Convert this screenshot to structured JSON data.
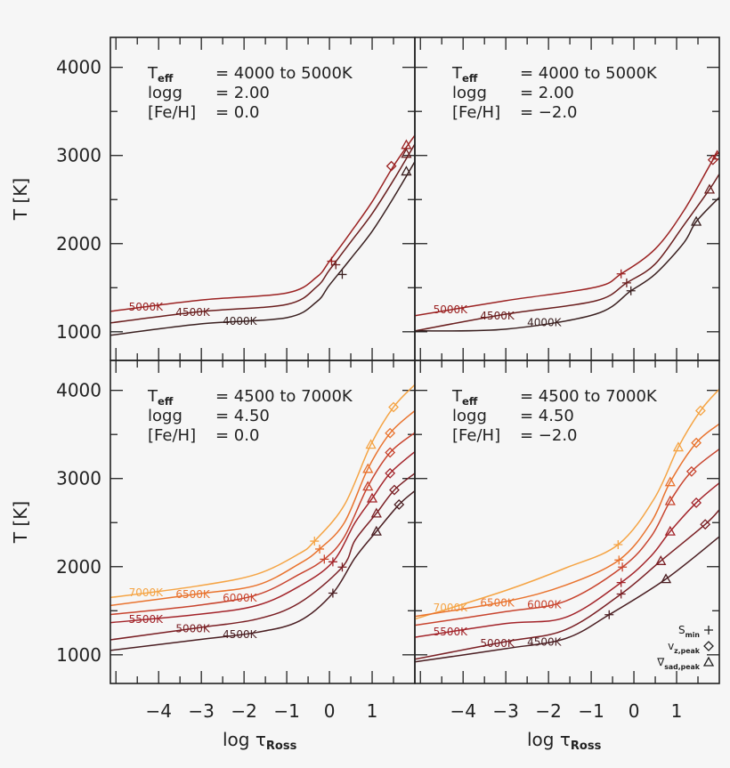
{
  "chart_data": [
    {
      "type": "line",
      "panel": "top-left",
      "annotation": [
        {
          "label": "T",
          "sub": "eff",
          "value": "=  4000 to 5000K"
        },
        {
          "label": "logg",
          "sub": "",
          "value": "=  2.00"
        },
        {
          "label": "[Fe/H]",
          "sub": "",
          "value": "=  0.0"
        }
      ],
      "ylabel": "T [K]",
      "xlabel": "",
      "show_y_ticklabels": true,
      "show_x_ticklabels": false,
      "xlim": [
        -5.13,
        2.0
      ],
      "ylim": [
        675,
        4340
      ],
      "xticks": [
        -4,
        -3,
        -2,
        -1,
        0,
        1
      ],
      "yticks": [
        1000,
        2000,
        3000,
        4000
      ],
      "ytick_labels": [
        "1000",
        "2000",
        "3000",
        "4000"
      ],
      "xtick_labels": [
        "−4",
        "−3",
        "−2",
        "−1",
        "0",
        "1"
      ],
      "series": [
        {
          "name": "5000K",
          "color": "#9b2222",
          "x": [
            -5.13,
            -3,
            -1,
            -0.3,
            0,
            0.5,
            1,
            1.5,
            2.0
          ],
          "y": [
            1232,
            1360,
            1440,
            1620,
            1800,
            2130,
            2475,
            2880,
            3230
          ],
          "s_min": [
            0.05,
            1800
          ],
          "vz_peak": [
            1.45,
            2880
          ],
          "nabla_peak": [
            1.8,
            3120
          ]
        },
        {
          "name": "4500K",
          "color": "#6a1e1e",
          "x": [
            -5.13,
            -3,
            -1,
            -0.3,
            0,
            0.5,
            1,
            1.5,
            2.0
          ],
          "y": [
            1100,
            1230,
            1310,
            1510,
            1700,
            2020,
            2340,
            2720,
            3130
          ],
          "s_min": [
            0.15,
            1760
          ],
          "vz_peak": null,
          "nabla_peak": [
            1.8,
            3020
          ]
        },
        {
          "name": "4000K",
          "color": "#3a2020",
          "x": [
            -5.13,
            -3,
            -1,
            -0.3,
            0,
            0.5,
            1,
            1.5,
            2.0
          ],
          "y": [
            960,
            1090,
            1160,
            1340,
            1530,
            1830,
            2140,
            2520,
            2930
          ],
          "s_min": [
            0.3,
            1650
          ],
          "vz_peak": null,
          "nabla_peak": [
            1.8,
            2820
          ]
        }
      ]
    },
    {
      "type": "line",
      "panel": "top-right",
      "annotation": [
        {
          "label": "T",
          "sub": "eff",
          "value": "=  4000 to 5000K"
        },
        {
          "label": "logg",
          "sub": "",
          "value": "=  2.00"
        },
        {
          "label": "[Fe/H]",
          "sub": "",
          "value": "=  −2.0"
        }
      ],
      "ylabel": "",
      "xlabel": "",
      "show_y_ticklabels": false,
      "show_x_ticklabels": false,
      "xlim": [
        -5.13,
        2.0
      ],
      "ylim": [
        675,
        4340
      ],
      "xticks": [
        -4,
        -3,
        -2,
        -1,
        0,
        1
      ],
      "yticks": [
        1000,
        2000,
        3000,
        4000
      ],
      "ytick_labels": [
        "1000",
        "2000",
        "3000",
        "4000"
      ],
      "xtick_labels": [
        "−4",
        "−3",
        "−2",
        "−1",
        "0",
        "1"
      ],
      "series": [
        {
          "name": "5000K",
          "color": "#9b2222",
          "x": [
            -5.13,
            -3,
            -0.9,
            -0.3,
            0.5,
            1.17,
            1.85,
            2.0
          ],
          "y": [
            1182,
            1353,
            1505,
            1657,
            1940,
            2375,
            2950,
            3030
          ],
          "s_min": [
            -0.3,
            1657
          ],
          "vz_peak": [
            1.85,
            2950
          ],
          "nabla_peak": [
            1.95,
            3000
          ]
        },
        {
          "name": "4500K",
          "color": "#6a1e1e",
          "x": [
            -5.13,
            -3,
            -0.9,
            -0.17,
            0.5,
            1.17,
            1.77,
            2.0
          ],
          "y": [
            1010,
            1200,
            1350,
            1555,
            1770,
            2210,
            2615,
            2790
          ],
          "s_min": [
            -0.17,
            1555
          ],
          "vz_peak": null,
          "nabla_peak": [
            1.77,
            2615
          ]
        },
        {
          "name": "4000K",
          "color": "#3a2020",
          "x": [
            -5.13,
            -3,
            -0.9,
            -0.07,
            0.5,
            1.17,
            1.46,
            2.0
          ],
          "y": [
            1010,
            1030,
            1200,
            1465,
            1655,
            2010,
            2250,
            2525
          ],
          "s_min": [
            -0.07,
            1465
          ],
          "vz_peak": null,
          "nabla_peak": [
            1.46,
            2250
          ]
        }
      ]
    },
    {
      "type": "line",
      "panel": "bottom-left",
      "annotation": [
        {
          "label": "T",
          "sub": "eff",
          "value": "=  4500 to 7000K"
        },
        {
          "label": "logg",
          "sub": "",
          "value": "=  4.50"
        },
        {
          "label": "[Fe/H]",
          "sub": "",
          "value": "=  0.0"
        }
      ],
      "ylabel": "T [K]",
      "xlabel": "log τ",
      "xlabel_sub": "Ross",
      "show_y_ticklabels": true,
      "show_x_ticklabels": true,
      "xlim": [
        -5.13,
        2.0
      ],
      "ylim": [
        675,
        4340
      ],
      "xticks": [
        -4,
        -3,
        -2,
        -1,
        0,
        1
      ],
      "yticks": [
        1000,
        2000,
        3000,
        4000
      ],
      "ytick_labels": [
        "1000",
        "2000",
        "3000",
        "4000"
      ],
      "xtick_labels": [
        "−4",
        "−3",
        "−2",
        "−1",
        "0",
        "1"
      ],
      "series": [
        {
          "name": "7000K",
          "color": "#f5a444",
          "x": [
            -5.13,
            -3.1,
            -1.7,
            -0.7,
            -0.35,
            0.35,
            0.97,
            1.5,
            2.0
          ],
          "y": [
            1650,
            1780,
            1915,
            2150,
            2290,
            2700,
            3385,
            3810,
            4065
          ],
          "s_min": [
            -0.35,
            2290
          ],
          "vz_peak": [
            1.5,
            3810
          ],
          "nabla_peak": [
            0.97,
            3385
          ]
        },
        {
          "name": "6500K",
          "color": "#e9732e",
          "x": [
            -5.13,
            -3.1,
            -1.7,
            -0.7,
            -0.23,
            0.35,
            0.9,
            1.42,
            2.0
          ],
          "y": [
            1560,
            1690,
            1790,
            2035,
            2200,
            2500,
            3110,
            3515,
            3770
          ],
          "s_min": [
            -0.23,
            2200
          ],
          "vz_peak": [
            1.42,
            3515
          ],
          "nabla_peak": [
            0.9,
            3110
          ]
        },
        {
          "name": "6000K",
          "color": "#c8442e",
          "x": [
            -5.13,
            -3.1,
            -1.7,
            -0.7,
            -0.12,
            0.35,
            0.9,
            1.42,
            2.0
          ],
          "y": [
            1457,
            1560,
            1680,
            1915,
            2085,
            2340,
            2910,
            3295,
            3520
          ],
          "s_min": [
            -0.12,
            2085
          ],
          "vz_peak": [
            1.42,
            3295
          ],
          "nabla_peak": [
            0.9,
            2910
          ]
        },
        {
          "name": "5500K",
          "color": "#a3242a",
          "x": [
            -5.13,
            -3.1,
            -1.7,
            -0.7,
            0.08,
            0.6,
            1.0,
            1.42,
            2.0
          ],
          "y": [
            1365,
            1457,
            1560,
            1780,
            2055,
            2500,
            2775,
            3060,
            3305
          ],
          "s_min": [
            0.08,
            2055
          ],
          "vz_peak": [
            1.42,
            3060
          ],
          "nabla_peak": [
            1.0,
            2775
          ]
        },
        {
          "name": "5000K",
          "color": "#7a1f24",
          "x": [
            -5.13,
            -3.1,
            -1.7,
            -0.7,
            0.3,
            0.6,
            1.1,
            1.52,
            2.0
          ],
          "y": [
            1170,
            1305,
            1405,
            1590,
            1995,
            2300,
            2605,
            2870,
            3060
          ],
          "s_min": [
            0.3,
            1995
          ],
          "vz_peak": [
            1.52,
            2870
          ],
          "nabla_peak": [
            1.1,
            2605
          ]
        },
        {
          "name": "4500K",
          "color": "#4a1e22",
          "x": [
            -5.13,
            -3.1,
            -1.7,
            -0.7,
            0.08,
            0.6,
            1.1,
            1.63,
            2.0
          ],
          "y": [
            1050,
            1170,
            1255,
            1385,
            1700,
            2100,
            2400,
            2705,
            2860
          ],
          "s_min": [
            0.08,
            1700
          ],
          "vz_peak": [
            1.63,
            2705
          ],
          "nabla_peak": [
            1.1,
            2400
          ]
        }
      ]
    },
    {
      "type": "line",
      "panel": "bottom-right",
      "annotation": [
        {
          "label": "T",
          "sub": "eff",
          "value": "=  4500 to 7000K"
        },
        {
          "label": "logg",
          "sub": "",
          "value": "=  4.50"
        },
        {
          "label": "[Fe/H]",
          "sub": "",
          "value": "=  −2.0"
        }
      ],
      "ylabel": "",
      "xlabel": "log τ",
      "xlabel_sub": "Ross",
      "show_y_ticklabels": false,
      "show_x_ticklabels": true,
      "xlim": [
        -5.13,
        2.0
      ],
      "ylim": [
        675,
        4340
      ],
      "xticks": [
        -4,
        -3,
        -2,
        -1,
        0,
        1
      ],
      "yticks": [
        1000,
        2000,
        3000,
        4000
      ],
      "ytick_labels": [
        "1000",
        "2000",
        "3000",
        "4000"
      ],
      "xtick_labels": [
        "−4",
        "−3",
        "−2",
        "−1",
        "0",
        "1"
      ],
      "legend": [
        {
          "label": "S",
          "sub": "min",
          "marker": "plus"
        },
        {
          "label": "v",
          "sub": "z,peak",
          "marker": "diamond"
        },
        {
          "label": "∇",
          "sub": "sad,peak",
          "marker": "triangle"
        }
      ],
      "series": [
        {
          "name": "7000K",
          "color": "#f5a444",
          "x": [
            -5.13,
            -3,
            -1.6,
            -0.37,
            0.48,
            1.04,
            1.56,
            2.0
          ],
          "y": [
            1405,
            1730,
            1985,
            2250,
            2775,
            3355,
            3770,
            4015
          ],
          "s_min": [
            -0.37,
            2250
          ],
          "vz_peak": [
            1.56,
            3770
          ],
          "nabla_peak": [
            1.04,
            3355
          ]
        },
        {
          "name": "6500K",
          "color": "#e9732e",
          "x": [
            -5.13,
            -3,
            -1.6,
            -0.35,
            0.4,
            0.85,
            1.46,
            2.0
          ],
          "y": [
            1435,
            1605,
            1790,
            2075,
            2500,
            2960,
            3405,
            3620
          ],
          "s_min": [
            -0.35,
            2075
          ],
          "vz_peak": [
            1.46,
            3405
          ],
          "nabla_peak": [
            0.85,
            2960
          ]
        },
        {
          "name": "6000K",
          "color": "#c8442e",
          "x": [
            -5.13,
            -3,
            -1.6,
            -0.27,
            0.4,
            0.85,
            1.35,
            2.0
          ],
          "y": [
            1335,
            1490,
            1610,
            1995,
            2340,
            2745,
            3080,
            3335
          ],
          "s_min": [
            -0.27,
            1995
          ],
          "vz_peak": [
            1.35,
            3080
          ],
          "nabla_peak": [
            0.85,
            2745
          ]
        },
        {
          "name": "5500K",
          "color": "#a3242a",
          "x": [
            -5.13,
            -3,
            -1.6,
            -0.3,
            0.4,
            0.85,
            1.46,
            2.0
          ],
          "y": [
            1200,
            1355,
            1425,
            1820,
            2120,
            2400,
            2725,
            2950
          ],
          "s_min": [
            -0.3,
            1820
          ],
          "vz_peak": [
            1.46,
            2725
          ],
          "nabla_peak": [
            0.85,
            2400
          ]
        },
        {
          "name": "5000K",
          "color": "#7a1f24",
          "x": [
            -5.13,
            -3,
            -1.6,
            -0.3,
            0.63,
            1.67,
            2.0
          ],
          "y": [
            950,
            1150,
            1285,
            1690,
            2065,
            2480,
            2645
          ],
          "s_min": [
            -0.3,
            1690
          ],
          "vz_peak": [
            1.67,
            2480
          ],
          "nabla_peak": [
            0.63,
            2065
          ]
        },
        {
          "name": "4500K",
          "color": "#4a1e22",
          "x": [
            -5.13,
            -3,
            -1.6,
            -0.58,
            0.75,
            2.0
          ],
          "y": [
            920,
            1070,
            1185,
            1455,
            1860,
            2340
          ],
          "s_min": [
            -0.58,
            1455
          ],
          "vz_peak": null,
          "nabla_peak": [
            0.75,
            1860
          ]
        }
      ]
    }
  ]
}
